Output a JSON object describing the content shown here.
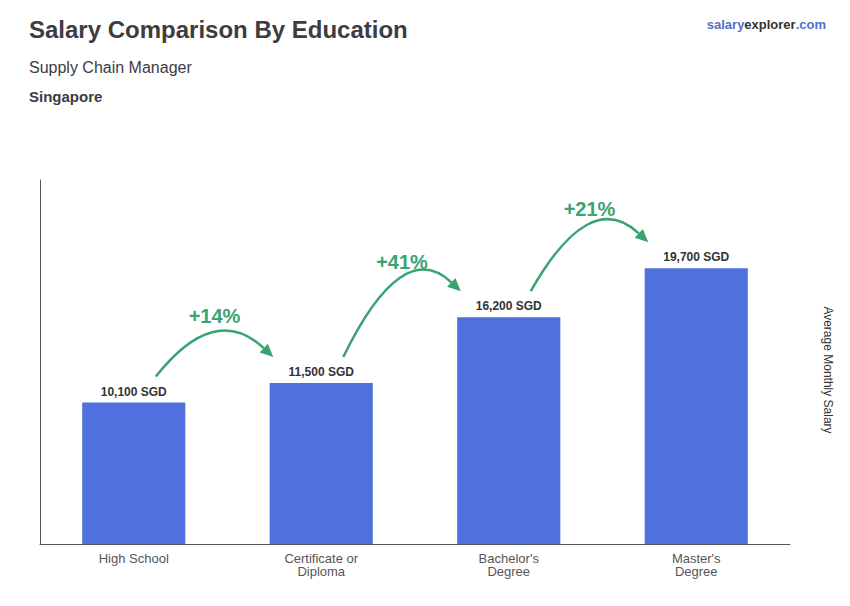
{
  "chart_data": {
    "type": "bar",
    "title": "Salary Comparison By Education",
    "subtitle": "Supply Chain Manager",
    "location": "Singapore",
    "watermark": [
      "salary",
      "explorer",
      ".com"
    ],
    "ylabel": "Average Monthly Salary",
    "categories": [
      "High School",
      "Certificate or\nDiploma",
      "Bachelor's\nDegree",
      "Master's\nDegree"
    ],
    "values": [
      10100,
      11500,
      16200,
      19700
    ],
    "value_labels": [
      "10,100 SGD",
      "11,500 SGD",
      "16,200 SGD",
      "19,700 SGD"
    ],
    "data_labels": true,
    "annotations": [
      "+14%",
      "+41%",
      "+21%"
    ],
    "ylim": [
      0,
      26000
    ],
    "tick_labels": "x",
    "grid": false
  }
}
